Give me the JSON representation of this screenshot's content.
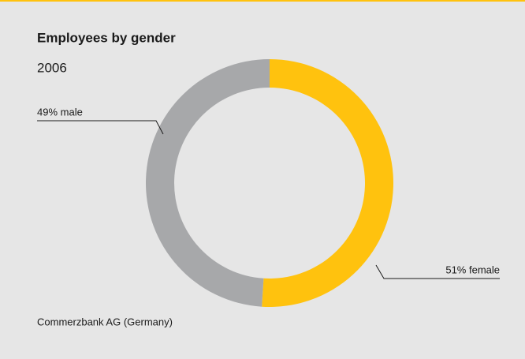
{
  "chart_data": {
    "type": "donut",
    "title": "Employees by gender",
    "subtitle": "2006",
    "values": [
      51,
      49
    ],
    "value_labels": [
      "51% female",
      "49% male"
    ],
    "colors": [
      "#ffc20e",
      "#a7a8aa"
    ],
    "source": "Commerzbank AG (Germany)"
  }
}
